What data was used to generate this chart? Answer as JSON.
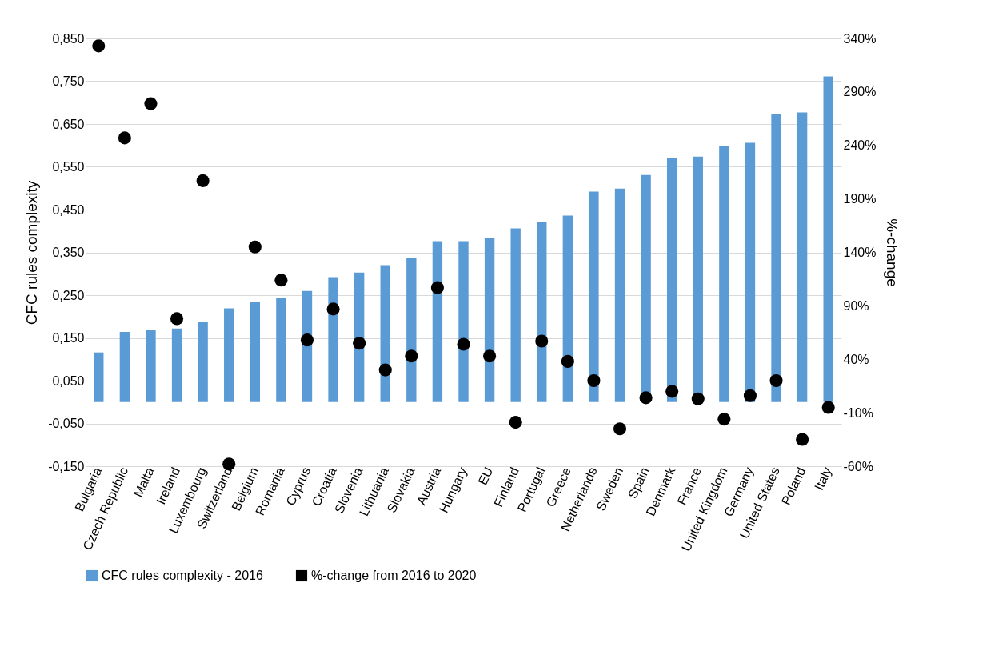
{
  "chart_data": {
    "type": "bar",
    "ylabel": "CFC rules complexity",
    "y2label": "%-change",
    "categories": [
      "Bulgaria",
      "Czech Republic",
      "Malta",
      "Ireland",
      "Luxembourg",
      "Switzerland",
      "Belgium",
      "Romania",
      "Cyprus",
      "Croatia",
      "Slovenia",
      "Lithuania",
      "Slovakia",
      "Austria",
      "Hungary",
      "EU",
      "Finland",
      "Portugal",
      "Greece",
      "Netherlands",
      "Sweden",
      "Spain",
      "Denmark",
      "France",
      "United Kingdom",
      "Germany",
      "United States",
      "Poland",
      "Italy"
    ],
    "series": [
      {
        "name": "CFC rules complexity - 2016",
        "color": "#5b9bd5",
        "values": [
          0.116,
          0.164,
          0.168,
          0.172,
          0.187,
          0.219,
          0.234,
          0.243,
          0.26,
          0.292,
          0.303,
          0.32,
          0.338,
          0.376,
          0.376,
          0.383,
          0.406,
          0.422,
          0.436,
          0.492,
          0.499,
          0.531,
          0.57,
          0.574,
          0.598,
          0.606,
          0.673,
          0.677,
          0.761
        ]
      },
      {
        "name": "%-change from 2016 to 2020",
        "type": "scatter",
        "axis": "y2",
        "color": "#000000",
        "values": [
          333,
          247,
          279,
          78,
          207,
          -58,
          145,
          114,
          58,
          87,
          55,
          30,
          43,
          107,
          54,
          43,
          -19,
          57,
          38,
          20,
          -25,
          4,
          10,
          3,
          -16,
          6,
          20,
          -35,
          -5
        ]
      }
    ],
    "ylim": [
      -0.15,
      0.85
    ],
    "yticks": [
      {
        "value": -0.15,
        "label": "-0,150"
      },
      {
        "value": -0.05,
        "label": "-0,050"
      },
      {
        "value": 0.05,
        "label": "0,050"
      },
      {
        "value": 0.15,
        "label": "0,150"
      },
      {
        "value": 0.25,
        "label": "0,250"
      },
      {
        "value": 0.35,
        "label": "0,350"
      },
      {
        "value": 0.45,
        "label": "0,450"
      },
      {
        "value": 0.55,
        "label": "0,550"
      },
      {
        "value": 0.65,
        "label": "0,650"
      },
      {
        "value": 0.75,
        "label": "0,750"
      },
      {
        "value": 0.85,
        "label": "0,850"
      }
    ],
    "y2lim": [
      -60,
      340
    ],
    "y2ticks": [
      {
        "value": -60,
        "label": "-60%"
      },
      {
        "value": -10,
        "label": "-10%"
      },
      {
        "value": 40,
        "label": "40%"
      },
      {
        "value": 90,
        "label": "90%"
      },
      {
        "value": 140,
        "label": "140%"
      },
      {
        "value": 190,
        "label": "190%"
      },
      {
        "value": 240,
        "label": "240%"
      },
      {
        "value": 290,
        "label": "290%"
      },
      {
        "value": 340,
        "label": "340%"
      }
    ],
    "grid": "y",
    "legend": "bottom",
    "marker": "circle"
  }
}
